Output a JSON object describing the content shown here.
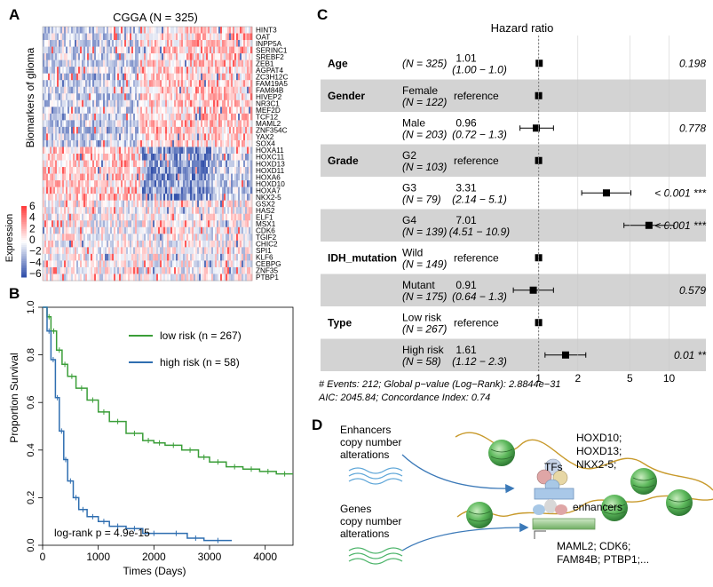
{
  "panels": {
    "A": {
      "label": "A",
      "title": "CGGA (N = 325)",
      "ylabel": "Biomarkers of glioma",
      "genes": [
        "HINT3",
        "OAT",
        "INPP5A",
        "SERINC1",
        "SREBF2",
        "ZEB1",
        "AGPAT4",
        "ZC3H12C",
        "FAM19A5",
        "FAM84B",
        "HIVEP2",
        "NR3C1",
        "MEF2D",
        "TCF12",
        "MAML2",
        "ZNF354C",
        "YAX2",
        "SOX4",
        "HOXA11",
        "HOXC11",
        "HOXD13",
        "HOXD11",
        "HOXA6",
        "HOXD10",
        "HOXA7",
        "NKX2-5",
        "GSX2",
        "HAS2",
        "ELF1",
        "MSX1",
        "CDK6",
        "TGIF2",
        "CHIC2",
        "SPI1",
        "KLF6",
        "CEBPG",
        "ZNF35",
        "PTBP1"
      ],
      "legend": {
        "title": "Expression",
        "ticks": [
          "6",
          "4",
          "2",
          "0",
          "−2",
          "−4",
          "−6"
        ],
        "high_color": "#d62f2f",
        "low_color": "#2b4c9c"
      }
    },
    "B": {
      "label": "B",
      "chart_data": {
        "type": "line",
        "title": "",
        "xlabel": "Times (Days)",
        "ylabel": "Proportion Survival",
        "xlim": [
          0,
          4500
        ],
        "ylim": [
          0,
          1
        ],
        "xticks": [
          "0",
          "1000",
          "2000",
          "3000",
          "4000"
        ],
        "yticks": [
          "0.0",
          "0.2",
          "0.4",
          "0.6",
          "0.8",
          "1.0"
        ],
        "annotation": "log-rank p = 4.9e-15",
        "series": [
          {
            "name": "low risk (n = 267)",
            "color": "#3a9e38",
            "x": [
              0,
              80,
              150,
              250,
              350,
              450,
              600,
              800,
              1000,
              1200,
              1500,
              1800,
              2000,
              2200,
              2500,
              2800,
              3000,
              3300,
              3600,
              3900,
              4200,
              4500
            ],
            "y": [
              1.0,
              0.96,
              0.9,
              0.82,
              0.76,
              0.71,
              0.66,
              0.61,
              0.56,
              0.52,
              0.47,
              0.44,
              0.43,
              0.42,
              0.4,
              0.37,
              0.35,
              0.33,
              0.32,
              0.31,
              0.3,
              0.3
            ]
          },
          {
            "name": "high risk (n = 58)",
            "color": "#2f6eb0",
            "x": [
              0,
              80,
              150,
              230,
              300,
              380,
              450,
              550,
              650,
              800,
              1000,
              1200,
              1500,
              1800,
              2200,
              2600,
              2900,
              3400
            ],
            "y": [
              1.0,
              0.9,
              0.78,
              0.62,
              0.48,
              0.36,
              0.27,
              0.2,
              0.15,
              0.12,
              0.1,
              0.08,
              0.07,
              0.05,
              0.05,
              0.03,
              0.02,
              0.02
            ]
          }
        ]
      }
    },
    "C": {
      "label": "C",
      "title": "Hazard ratio",
      "xticks": [
        "1",
        "2",
        "5",
        "10"
      ],
      "xtick_values": [
        1,
        2,
        5,
        10
      ],
      "rows": [
        {
          "var": "Age",
          "level": "",
          "n": "(N = 325)",
          "hr": "1.01",
          "ci": "(1.00 − 1.0)",
          "p": "0.198",
          "val": 1.01,
          "lo": 1.0,
          "hi": 1.02,
          "shade": false
        },
        {
          "var": "Gender",
          "level": "Female",
          "n": "(N = 122)",
          "hr": "reference",
          "ci": "",
          "p": "",
          "val": 1.0,
          "lo": null,
          "hi": null,
          "shade": true
        },
        {
          "var": "",
          "level": "Male",
          "n": "(N = 203)",
          "hr": "0.96",
          "ci": "(0.72 − 1.3)",
          "p": "0.778",
          "val": 0.96,
          "lo": 0.72,
          "hi": 1.3,
          "shade": false
        },
        {
          "var": "Grade",
          "level": "G2",
          "n": "(N = 103)",
          "hr": "reference",
          "ci": "",
          "p": "",
          "val": 1.0,
          "lo": null,
          "hi": null,
          "shade": true
        },
        {
          "var": "",
          "level": "G3",
          "n": "(N = 79)",
          "hr": "3.31",
          "ci": "(2.14 − 5.1)",
          "p": "< 0.001 ***",
          "val": 3.31,
          "lo": 2.14,
          "hi": 5.1,
          "shade": false
        },
        {
          "var": "",
          "level": "G4",
          "n": "(N = 139)",
          "hr": "7.01",
          "ci": "(4.51 − 10.9)",
          "p": "< 0.001 ***",
          "val": 7.01,
          "lo": 4.51,
          "hi": 10.9,
          "shade": true
        },
        {
          "var": "IDH_mutation",
          "level": "Wild",
          "n": "(N = 149)",
          "hr": "reference",
          "ci": "",
          "p": "",
          "val": 1.0,
          "lo": null,
          "hi": null,
          "shade": false
        },
        {
          "var": "",
          "level": "Mutant",
          "n": "(N = 175)",
          "hr": "0.91",
          "ci": "(0.64 − 1.3)",
          "p": "0.579",
          "val": 0.91,
          "lo": 0.64,
          "hi": 1.3,
          "shade": true
        },
        {
          "var": "Type",
          "level": "Low risk",
          "n": "(N = 267)",
          "hr": "reference",
          "ci": "",
          "p": "",
          "val": 1.0,
          "lo": null,
          "hi": null,
          "shade": false
        },
        {
          "var": "",
          "level": "High risk",
          "n": "(N = 58)",
          "hr": "1.61",
          "ci": "(1.12 − 2.3)",
          "p": "0.01 **",
          "val": 1.61,
          "lo": 1.12,
          "hi": 2.3,
          "shade": true
        }
      ],
      "footer1": "# Events: 212; Global p−value (Log−Rank): 2.8844e−31",
      "footer2": "AIC: 2045.84; Concordance Index: 0.74"
    },
    "D": {
      "label": "D",
      "enhancers_text": [
        "Enhancers",
        "copy number",
        "alterations"
      ],
      "genes_text": [
        "Genes",
        "copy number",
        "alterations"
      ],
      "tfs_label": "TFs",
      "tf_genes": [
        "HOXD10;",
        "HOXD13;",
        "NKX2-5;"
      ],
      "enhancers_label": "enhancers",
      "targets": [
        "MAML2; CDK6;",
        "FAM84B; PTBP1;..."
      ]
    }
  }
}
